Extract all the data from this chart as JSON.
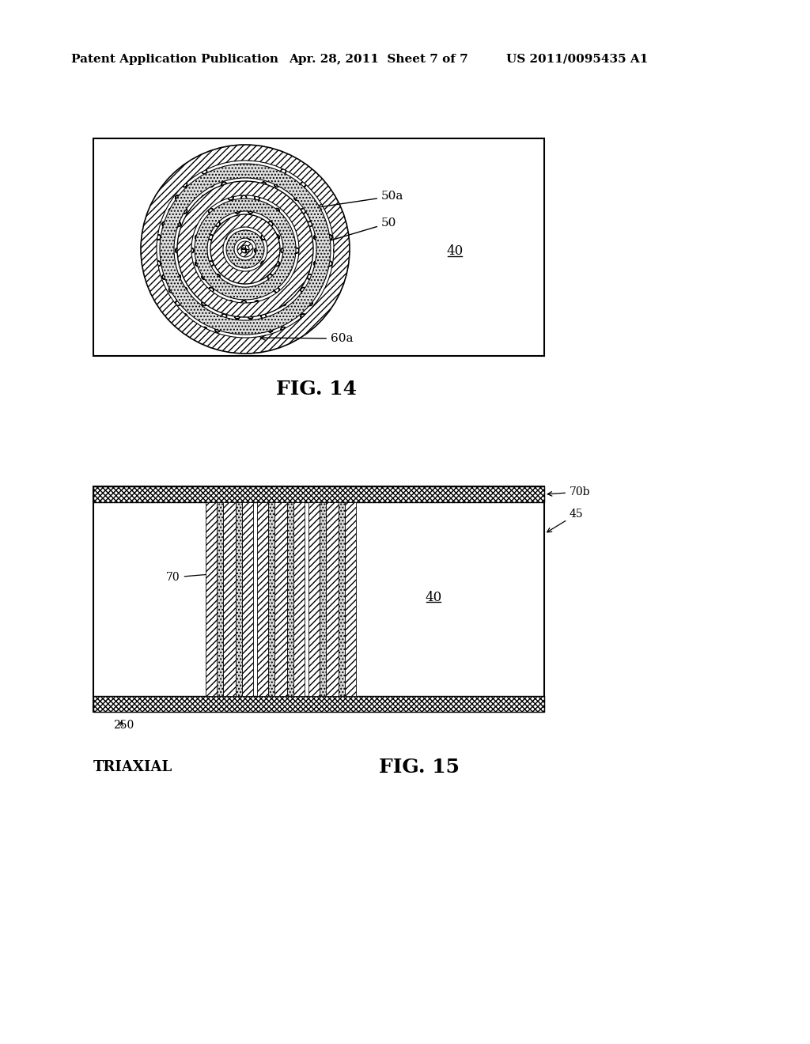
{
  "bg_color": "#ffffff",
  "header_left": "Patent Application Publication",
  "header_mid": "Apr. 28, 2011  Sheet 7 of 7",
  "header_right": "US 2011/0095435 A1",
  "fig14_label": "FIG. 14",
  "fig15_label": "FIG. 15",
  "triaxial_label": "TRIAXIAL",
  "label_50a": "50a",
  "label_50": "50",
  "label_40_top": "40",
  "label_60a": "60a",
  "label_70b": "70b",
  "label_45": "45",
  "label_70": "70",
  "label_40_bot": "40",
  "label_250": "250"
}
